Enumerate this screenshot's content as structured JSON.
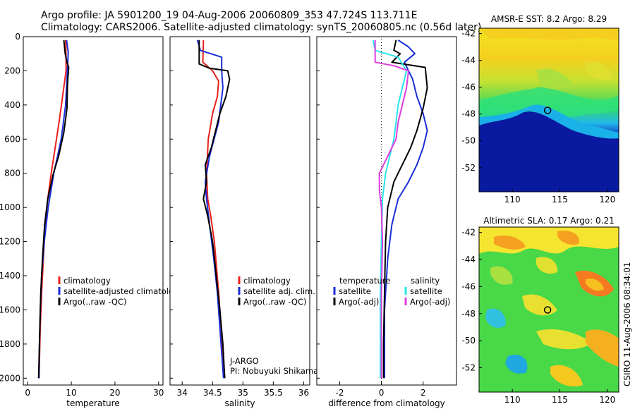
{
  "header": {
    "line1": "Argo profile: JA 5901200_19 04-Aug-2006 20060809_353 47.724S 113.711E",
    "line2": "Climatology: CARS2006. Satellite-adjusted climatology: synTS_20060805.nc (0.56d later)"
  },
  "colors": {
    "climatology": "#e8201c",
    "satellite": "#1a2ed8",
    "argo": "#000000",
    "sat_salinity": "#29e4ea",
    "argo_salinity": "#e03ce0"
  },
  "chart_data": [
    {
      "type": "line",
      "name": "temperature-panel",
      "xlabel": "temperature",
      "ylabel": "",
      "xlim": [
        -1,
        31
      ],
      "ylim": [
        2040,
        0
      ],
      "x_ticks": [
        "0",
        "10",
        "20",
        "30"
      ],
      "y_ticks": [
        "0",
        "200",
        "400",
        "600",
        "800",
        "1000",
        "1200",
        "1400",
        "1600",
        "1800",
        "2000"
      ],
      "legend": [
        "climatology",
        "satellite-adjusted climatology",
        "Argo(..raw -QC)"
      ],
      "series": [
        {
          "name": "climatology",
          "color_key": "climatology",
          "points": [
            [
              8.7,
              20
            ],
            [
              8.8,
              100
            ],
            [
              8.8,
              200
            ],
            [
              8.0,
              350
            ],
            [
              7.2,
              500
            ],
            [
              6.3,
              650
            ],
            [
              5.4,
              800
            ],
            [
              4.6,
              950
            ],
            [
              4.0,
              1100
            ],
            [
              3.6,
              1300
            ],
            [
              3.2,
              1500
            ],
            [
              2.9,
              1700
            ],
            [
              2.7,
              1900
            ],
            [
              2.6,
              2000
            ]
          ]
        },
        {
          "name": "satellite-adjusted climatology",
          "color_key": "satellite",
          "points": [
            [
              8.9,
              20
            ],
            [
              9.3,
              90
            ],
            [
              9.1,
              200
            ],
            [
              8.7,
              400
            ],
            [
              7.7,
              600
            ],
            [
              6.0,
              800
            ],
            [
              4.7,
              1000
            ],
            [
              3.8,
              1200
            ],
            [
              3.2,
              1400
            ],
            [
              2.9,
              1600
            ],
            [
              2.7,
              1800
            ],
            [
              2.6,
              2000
            ]
          ]
        },
        {
          "name": "Argo(..raw -QC)",
          "color_key": "argo",
          "points": [
            [
              8.3,
              20
            ],
            [
              8.6,
              100
            ],
            [
              9.0,
              150
            ],
            [
              9.4,
              180
            ],
            [
              9.2,
              250
            ],
            [
              9.1,
              300
            ],
            [
              9.0,
              420
            ],
            [
              8.3,
              560
            ],
            [
              7.1,
              700
            ],
            [
              5.9,
              800
            ],
            [
              4.6,
              950
            ],
            [
              3.9,
              1100
            ],
            [
              3.4,
              1300
            ],
            [
              3.0,
              1500
            ],
            [
              2.8,
              1700
            ],
            [
              2.6,
              1900
            ],
            [
              2.5,
              2000
            ]
          ]
        }
      ]
    },
    {
      "type": "line",
      "name": "salinity-panel",
      "xlabel": "salinity",
      "ylabel": "",
      "xlim": [
        33.8,
        36.1
      ],
      "ylim": [
        2040,
        0
      ],
      "x_ticks": [
        "34",
        "34.5",
        "35",
        "35.5",
        "36"
      ],
      "legend": [
        "climatology",
        "satellite adj. clim.",
        "Argo(..raw -QC)"
      ],
      "annotations": [
        "J-ARGO",
        "PI: Nobuyuki Shikama"
      ],
      "series": [
        {
          "name": "climatology",
          "color_key": "climatology",
          "points": [
            [
              34.35,
              20
            ],
            [
              34.34,
              150
            ],
            [
              34.5,
              200
            ],
            [
              34.6,
              260
            ],
            [
              34.58,
              350
            ],
            [
              34.5,
              450
            ],
            [
              34.43,
              600
            ],
            [
              34.4,
              800
            ],
            [
              34.42,
              950
            ],
            [
              34.47,
              1050
            ],
            [
              34.53,
              1200
            ],
            [
              34.6,
              1500
            ],
            [
              34.66,
              1800
            ],
            [
              34.7,
              2000
            ]
          ]
        },
        {
          "name": "satellite adj. clim.",
          "color_key": "satellite",
          "points": [
            [
              34.25,
              20
            ],
            [
              34.3,
              80
            ],
            [
              34.65,
              120
            ],
            [
              34.65,
              200
            ],
            [
              34.67,
              300
            ],
            [
              34.6,
              500
            ],
            [
              34.45,
              700
            ],
            [
              34.38,
              850
            ],
            [
              34.4,
              950
            ],
            [
              34.45,
              1100
            ],
            [
              34.52,
              1300
            ],
            [
              34.58,
              1500
            ],
            [
              34.64,
              1800
            ],
            [
              34.68,
              2000
            ]
          ]
        },
        {
          "name": "Argo(..raw -QC)",
          "color_key": "argo",
          "points": [
            [
              34.28,
              20
            ],
            [
              34.28,
              160
            ],
            [
              34.45,
              185
            ],
            [
              34.75,
              200
            ],
            [
              34.78,
              250
            ],
            [
              34.72,
              350
            ],
            [
              34.62,
              450
            ],
            [
              34.55,
              550
            ],
            [
              34.48,
              650
            ],
            [
              34.38,
              750
            ],
            [
              34.4,
              850
            ],
            [
              34.35,
              950
            ],
            [
              34.42,
              1050
            ],
            [
              34.5,
              1200
            ],
            [
              34.56,
              1400
            ],
            [
              34.62,
              1600
            ],
            [
              34.67,
              1800
            ],
            [
              34.7,
              2000
            ]
          ]
        }
      ]
    },
    {
      "type": "line",
      "name": "difference-panel",
      "xlabel": "difference from climatology",
      "ylabel": "",
      "xlim": [
        -3.1,
        3.6
      ],
      "ylim": [
        2040,
        0
      ],
      "x_ticks": [
        "-2",
        "0",
        "2"
      ],
      "legend_groups": [
        {
          "title": "temperature",
          "items": [
            "satellite",
            "Argo(-adj)"
          ]
        },
        {
          "title": "salinity",
          "items": [
            "satellite",
            "Argo(-adj)"
          ]
        }
      ],
      "series": [
        {
          "name": "temperature satellite",
          "color_key": "satellite",
          "points": [
            [
              0.8,
              20
            ],
            [
              1.3,
              60
            ],
            [
              1.6,
              100
            ],
            [
              1.1,
              150
            ],
            [
              1.5,
              250
            ],
            [
              1.7,
              350
            ],
            [
              2.0,
              450
            ],
            [
              2.2,
              550
            ],
            [
              2.0,
              650
            ],
            [
              1.7,
              750
            ],
            [
              1.3,
              850
            ],
            [
              0.8,
              950
            ],
            [
              0.5,
              1100
            ],
            [
              0.3,
              1300
            ],
            [
              0.15,
              1600
            ],
            [
              0.15,
              2000
            ]
          ]
        },
        {
          "name": "temperature Argo(-adj)",
          "color_key": "argo",
          "points": [
            [
              0.7,
              20
            ],
            [
              0.6,
              80
            ],
            [
              0.9,
              100
            ],
            [
              0.5,
              150
            ],
            [
              2.1,
              180
            ],
            [
              2.2,
              300
            ],
            [
              2.0,
              420
            ],
            [
              1.7,
              550
            ],
            [
              1.4,
              650
            ],
            [
              1.0,
              750
            ],
            [
              0.6,
              850
            ],
            [
              0.3,
              1000
            ],
            [
              0.2,
              1200
            ],
            [
              0.15,
              1500
            ],
            [
              0.1,
              1800
            ],
            [
              0.1,
              2000
            ]
          ]
        },
        {
          "name": "salinity satellite",
          "color_key": "sat_salinity",
          "points": [
            [
              -0.4,
              20
            ],
            [
              -0.3,
              80
            ],
            [
              0.8,
              120
            ],
            [
              1.2,
              200
            ],
            [
              1.0,
              300
            ],
            [
              0.8,
              400
            ],
            [
              0.7,
              500
            ],
            [
              0.6,
              600
            ],
            [
              0.4,
              700
            ],
            [
              0.2,
              800
            ],
            [
              0.05,
              950
            ],
            [
              0.0,
              1200
            ],
            [
              -0.05,
              1500
            ],
            [
              -0.05,
              2000
            ]
          ]
        },
        {
          "name": "salinity Argo(-adj)",
          "color_key": "argo_salinity",
          "points": [
            [
              -0.3,
              20
            ],
            [
              -0.3,
              150
            ],
            [
              0.6,
              170
            ],
            [
              1.3,
              200
            ],
            [
              1.2,
              300
            ],
            [
              1.0,
              400
            ],
            [
              0.8,
              500
            ],
            [
              0.7,
              600
            ],
            [
              0.3,
              700
            ],
            [
              -0.1,
              800
            ],
            [
              -0.1,
              900
            ],
            [
              0.0,
              1000
            ],
            [
              0.05,
              1200
            ],
            [
              0.0,
              1500
            ],
            [
              0.0,
              2000
            ]
          ]
        }
      ]
    },
    {
      "type": "heatmap",
      "name": "amsre-sst-map",
      "title": "AMSR-E SST: 8.2 Argo: 8.29",
      "xlim": [
        106.5,
        121.2
      ],
      "ylim": [
        -53.8,
        -41.6
      ],
      "x_ticks": [
        "110",
        "115",
        "120"
      ],
      "y_ticks": [
        "-42",
        "-44",
        "-46",
        "-48",
        "-50",
        "-52"
      ],
      "marker": {
        "lon": 113.711,
        "lat": -47.724
      }
    },
    {
      "type": "heatmap",
      "name": "altimetric-sla-map",
      "title": "Altimetric SLA: 0.17 Argo: 0.21",
      "xlim": [
        106.5,
        121.2
      ],
      "ylim": [
        -53.8,
        -41.6
      ],
      "x_ticks": [
        "110",
        "115",
        "120"
      ],
      "y_ticks": [
        "-42",
        "-44",
        "-46",
        "-48",
        "-50",
        "-52"
      ],
      "marker": {
        "lon": 113.711,
        "lat": -47.724
      }
    }
  ],
  "footer": {
    "credit": "CSIRO 11-Aug-2006 08:34:01"
  }
}
